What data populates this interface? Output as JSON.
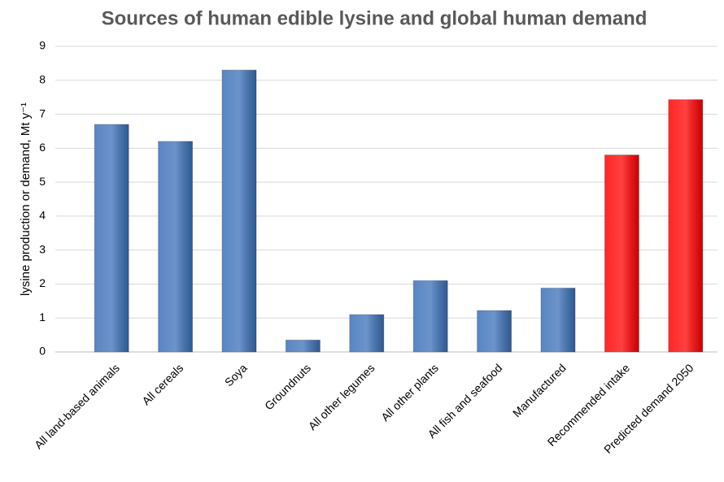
{
  "chart_data": {
    "type": "bar",
    "title": "Sources of human edible lysine and global human demand",
    "y_label": "lysine production or demand, Mt y⁻¹",
    "categories": [
      "All land-based animals",
      "All cereals",
      "Soya",
      "Groundnuts",
      "All other legumes",
      "All other plants",
      "All fish and seafood",
      "Manufactured",
      "Recommended intake",
      "Predicted demand 2050"
    ],
    "values": [
      6.7,
      6.2,
      8.3,
      0.35,
      1.1,
      2.1,
      1.22,
      1.88,
      5.8,
      7.43
    ],
    "colors": [
      "#3b70b8",
      "#3b70b8",
      "#3b70b8",
      "#3b70b8",
      "#3b70b8",
      "#3b70b8",
      "#3b70b8",
      "#3b70b8",
      "#ff0000",
      "#ff0000"
    ],
    "ylim": [
      0,
      9
    ],
    "yticks": [
      0,
      1,
      2,
      3,
      4,
      5,
      6,
      7,
      8,
      9
    ],
    "grid": true
  }
}
